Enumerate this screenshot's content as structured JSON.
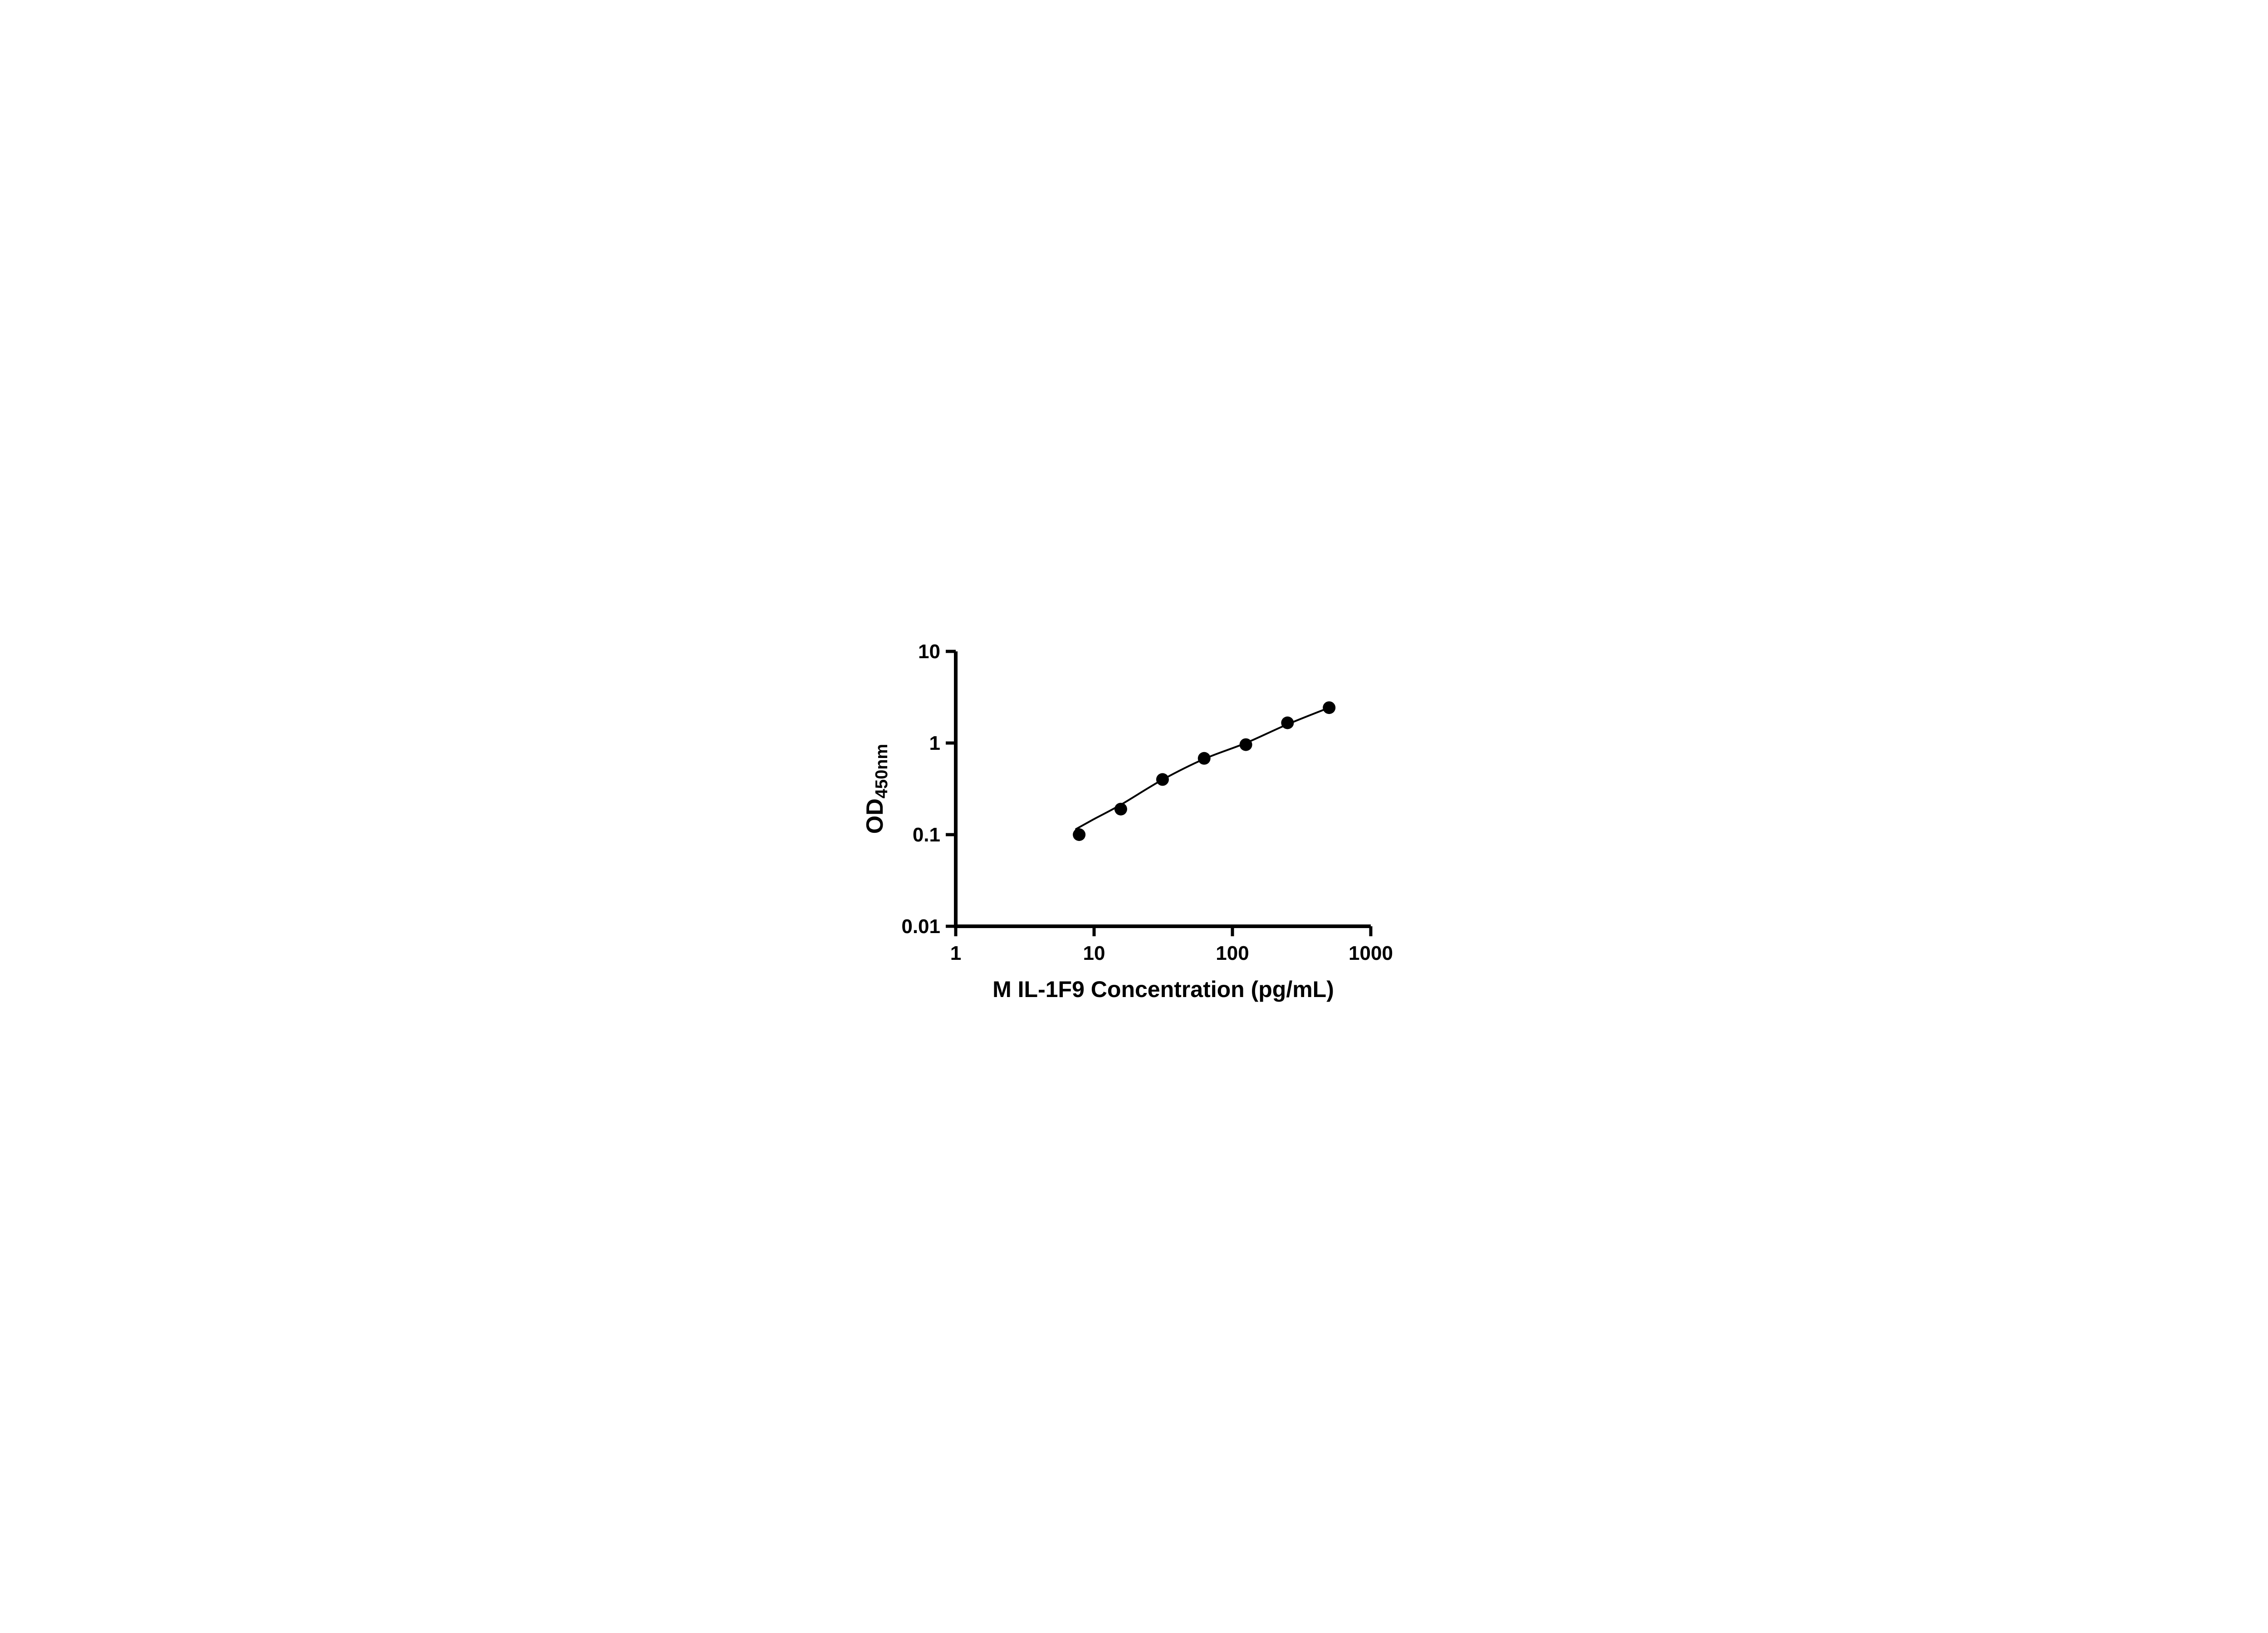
{
  "figure": {
    "background": "#ffffff"
  },
  "colors": {
    "axis": "#000000",
    "marker": "#000000",
    "curve": "#000000",
    "text": "#000000"
  },
  "chart_data": {
    "type": "scatter",
    "title": "",
    "xlabel": "M IL-1F9 Concentration (pg/mL)",
    "ylabel_main": "OD",
    "ylabel_sub": "450nm",
    "x_scale": "log",
    "y_scale": "log",
    "xlim": [
      1,
      1000
    ],
    "ylim": [
      0.01,
      10
    ],
    "x_ticks": [
      1,
      10,
      100,
      1000
    ],
    "x_tick_labels": [
      "1",
      "10",
      "100",
      "1000"
    ],
    "y_ticks": [
      0.01,
      0.1,
      1,
      10
    ],
    "y_tick_labels": [
      "0.01",
      "0.1",
      "1",
      "10"
    ],
    "grid": false,
    "legend": false,
    "series": [
      {
        "name": "standard-points",
        "type": "scatter",
        "marker": "circle",
        "color": "#000000",
        "x": [
          7.8,
          15.6,
          31.25,
          62.5,
          125,
          250,
          500
        ],
        "y": [
          0.1,
          0.19,
          0.4,
          0.68,
          0.96,
          1.66,
          2.43
        ]
      },
      {
        "name": "fit-curve",
        "type": "line",
        "color": "#000000",
        "x": [
          7.4,
          10,
          15.6,
          31.25,
          62.5,
          125,
          250,
          500
        ],
        "y": [
          0.115,
          0.148,
          0.212,
          0.398,
          0.67,
          1.0,
          1.6,
          2.43
        ]
      }
    ]
  }
}
